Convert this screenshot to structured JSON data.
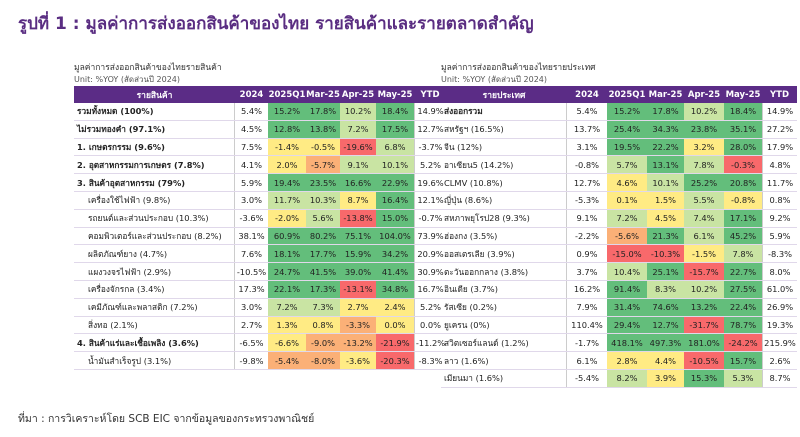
{
  "title": "รูปที่ 1 : มูลค่าการส่งออกสินค้าของไทย รายสินค้าและรายตลาดสำคัญ",
  "source": "ที่มา : การวิเคราะห์โดย SCB EIC จากข้อมูลของกระทรวงพาณิชย์",
  "colors": {
    "header": "#5b2c86",
    "green": "#63be7b",
    "lightgreen": "#c9e4a3",
    "yellow": "#ffeb84",
    "orange": "#fbb077",
    "red": "#f8696b"
  },
  "chart_data": [
    {
      "type": "table",
      "title": "มูลค่าการส่งออกสินค้าของไทยรายสินค้า",
      "subtitle": "Unit: %YOY (สัดส่วนปี 2024)",
      "columns": [
        "รายสินค้า",
        "2024",
        "2025Q1",
        "Mar-25",
        "Apr-25",
        "May-25",
        "YTD"
      ],
      "rows": [
        {
          "label": "รวมทั้งหมด (100%)",
          "style": "bold",
          "values": [
            "5.4%",
            "15.2%",
            "17.8%",
            "10.2%",
            "18.4%",
            "14.9%"
          ],
          "colors": [
            "none",
            "green",
            "green",
            "lightgreen",
            "green",
            "none"
          ]
        },
        {
          "label": "ไม่รวมทองคำ (97.1%)",
          "style": "bold",
          "values": [
            "4.5%",
            "12.8%",
            "13.8%",
            "7.2%",
            "17.5%",
            "12.7%"
          ],
          "colors": [
            "none",
            "green",
            "green",
            "lightgreen",
            "green",
            "none"
          ]
        },
        {
          "label": "1. เกษตรกรรม (9.6%)",
          "style": "bold",
          "values": [
            "7.5%",
            "-1.4%",
            "-0.5%",
            "-19.6%",
            "6.8%",
            "-3.7%"
          ],
          "colors": [
            "none",
            "yellow",
            "yellow",
            "red",
            "lightgreen",
            "none"
          ]
        },
        {
          "label": "2. อุตสาหกรรมการเกษตร (7.8%)",
          "style": "bold",
          "values": [
            "4.1%",
            "2.0%",
            "-5.7%",
            "9.1%",
            "10.1%",
            "5.2%"
          ],
          "colors": [
            "none",
            "yellow",
            "orange",
            "lightgreen",
            "lightgreen",
            "none"
          ]
        },
        {
          "label": "3. สินค้าอุตสาหกรรม (79%)",
          "style": "bold",
          "values": [
            "5.9%",
            "19.4%",
            "23.5%",
            "16.6%",
            "22.9%",
            "19.6%"
          ],
          "colors": [
            "none",
            "green",
            "green",
            "green",
            "green",
            "none"
          ]
        },
        {
          "label": "เครื่องใช้ไฟฟ้า (9.8%)",
          "style": "indent",
          "values": [
            "3.0%",
            "11.7%",
            "10.3%",
            "8.7%",
            "16.4%",
            "12.1%"
          ],
          "colors": [
            "none",
            "lightgreen",
            "lightgreen",
            "yellow",
            "green",
            "none"
          ]
        },
        {
          "label": "รถยนต์และส่วนประกอบ (10.3%)",
          "style": "indent",
          "values": [
            "-3.6%",
            "-2.0%",
            "5.6%",
            "-13.8%",
            "15.0%",
            "-0.7%"
          ],
          "colors": [
            "none",
            "yellow",
            "lightgreen",
            "red",
            "green",
            "none"
          ]
        },
        {
          "label": "คอมพิวเตอร์และส่วนประกอบ (8.2%)",
          "style": "indent",
          "values": [
            "38.1%",
            "60.9%",
            "80.2%",
            "75.1%",
            "104.0%",
            "73.9%"
          ],
          "colors": [
            "none",
            "green",
            "green",
            "green",
            "green",
            "none"
          ]
        },
        {
          "label": "ผลิตภัณฑ์ยาง (4.7%)",
          "style": "indent",
          "values": [
            "7.6%",
            "18.1%",
            "17.7%",
            "15.9%",
            "34.2%",
            "20.9%"
          ],
          "colors": [
            "none",
            "green",
            "green",
            "green",
            "green",
            "none"
          ]
        },
        {
          "label": "แผงวงจรไฟฟ้า (2.9%)",
          "style": "indent",
          "values": [
            "-10.5%",
            "24.7%",
            "41.5%",
            "39.0%",
            "41.4%",
            "30.9%"
          ],
          "colors": [
            "none",
            "green",
            "green",
            "green",
            "green",
            "none"
          ]
        },
        {
          "label": "เครื่องจักรกล (3.4%)",
          "style": "indent",
          "values": [
            "17.3%",
            "22.1%",
            "17.3%",
            "-13.1%",
            "34.8%",
            "16.7%"
          ],
          "colors": [
            "none",
            "green",
            "green",
            "red",
            "green",
            "none"
          ]
        },
        {
          "label": "เคมีภัณฑ์และพลาสติก (7.2%)",
          "style": "indent",
          "values": [
            "3.0%",
            "7.2%",
            "7.3%",
            "2.7%",
            "2.4%",
            "5.2%"
          ],
          "colors": [
            "none",
            "lightgreen",
            "lightgreen",
            "yellow",
            "yellow",
            "none"
          ]
        },
        {
          "label": "สิ่งทอ (2.1%)",
          "style": "indent",
          "values": [
            "2.7%",
            "1.3%",
            "0.8%",
            "-3.3%",
            "0.0%",
            "0.0%"
          ],
          "colors": [
            "none",
            "yellow",
            "yellow",
            "orange",
            "yellow",
            "none"
          ]
        },
        {
          "label": "4. สินค้าแร่และเชื้อเพลิง (3.6%)",
          "style": "bold",
          "values": [
            "-6.5%",
            "-6.6%",
            "-9.0%",
            "-13.2%",
            "-21.9%",
            "-11.2%"
          ],
          "colors": [
            "none",
            "yellow",
            "orange",
            "orange",
            "red",
            "none"
          ]
        },
        {
          "label": "น้ำมันสำเร็จรูป (3.1%)",
          "style": "indent",
          "values": [
            "-9.8%",
            "-5.4%",
            "-8.0%",
            "-3.6%",
            "-20.3%",
            "-8.3%"
          ],
          "colors": [
            "none",
            "orange",
            "orange",
            "yellow",
            "red",
            "none"
          ]
        }
      ]
    },
    {
      "type": "table",
      "title": "มูลค่าการส่งออกสินค้าของไทยรายประเทศ",
      "subtitle": "Unit: %YOY (สัดส่วนปี 2024)",
      "columns": [
        "รายประเทศ",
        "2024",
        "2025Q1",
        "Mar-25",
        "Apr-25",
        "May-25",
        "YTD"
      ],
      "rows": [
        {
          "label": "ส่งออกรวม",
          "style": "bold",
          "values": [
            "5.4%",
            "15.2%",
            "17.8%",
            "10.2%",
            "18.4%",
            "14.9%"
          ],
          "colors": [
            "none",
            "green",
            "green",
            "lightgreen",
            "green",
            "none"
          ]
        },
        {
          "label": "สหรัฐฯ (16.5%)",
          "style": "plain",
          "values": [
            "13.7%",
            "25.4%",
            "34.3%",
            "23.8%",
            "35.1%",
            "27.2%"
          ],
          "colors": [
            "none",
            "green",
            "green",
            "green",
            "green",
            "none"
          ]
        },
        {
          "label": "จีน (12%)",
          "style": "plain",
          "values": [
            "3.1%",
            "19.5%",
            "22.2%",
            "3.2%",
            "28.0%",
            "17.9%"
          ],
          "colors": [
            "none",
            "green",
            "green",
            "yellow",
            "green",
            "none"
          ]
        },
        {
          "label": "อาเซียน5 (14.2%)",
          "style": "plain",
          "values": [
            "-0.8%",
            "5.7%",
            "13.1%",
            "7.8%",
            "-0.3%",
            "4.8%"
          ],
          "colors": [
            "none",
            "lightgreen",
            "green",
            "lightgreen",
            "red",
            "none"
          ]
        },
        {
          "label": "CLMV (10.8%)",
          "style": "plain",
          "values": [
            "12.7%",
            "4.6%",
            "10.1%",
            "25.2%",
            "20.8%",
            "11.7%"
          ],
          "colors": [
            "none",
            "yellow",
            "lightgreen",
            "green",
            "green",
            "none"
          ]
        },
        {
          "label": "ญี่ปุ่น (8.6%)",
          "style": "plain",
          "values": [
            "-5.3%",
            "0.1%",
            "1.5%",
            "5.5%",
            "-0.8%",
            "0.8%"
          ],
          "colors": [
            "none",
            "yellow",
            "yellow",
            "lightgreen",
            "yellow",
            "none"
          ]
        },
        {
          "label": "สหภาพยุโรป28 (9.3%)",
          "style": "plain",
          "values": [
            "9.1%",
            "7.2%",
            "4.5%",
            "7.4%",
            "17.1%",
            "9.2%"
          ],
          "colors": [
            "none",
            "lightgreen",
            "yellow",
            "lightgreen",
            "green",
            "none"
          ]
        },
        {
          "label": "ฮ่องกง (3.5%)",
          "style": "plain",
          "values": [
            "-2.2%",
            "-5.6%",
            "21.3%",
            "6.1%",
            "45.2%",
            "5.9%"
          ],
          "colors": [
            "none",
            "orange",
            "green",
            "lightgreen",
            "green",
            "none"
          ]
        },
        {
          "label": "ออสเตรเลีย (3.9%)",
          "style": "plain",
          "values": [
            "0.9%",
            "-15.0%",
            "-10.3%",
            "-1.5%",
            "7.8%",
            "-8.3%"
          ],
          "colors": [
            "none",
            "red",
            "red",
            "yellow",
            "lightgreen",
            "none"
          ]
        },
        {
          "label": "ตะวันออกกลาง (3.8%)",
          "style": "plain",
          "values": [
            "3.7%",
            "10.4%",
            "25.1%",
            "-15.7%",
            "22.7%",
            "8.0%"
          ],
          "colors": [
            "none",
            "lightgreen",
            "green",
            "red",
            "green",
            "none"
          ]
        },
        {
          "label": "อินเดีย (3.7%)",
          "style": "plain",
          "values": [
            "16.2%",
            "91.4%",
            "8.3%",
            "10.2%",
            "27.5%",
            "61.0%"
          ],
          "colors": [
            "none",
            "green",
            "lightgreen",
            "lightgreen",
            "green",
            "none"
          ]
        },
        {
          "label": "รัสเซีย (0.2%)",
          "style": "plain",
          "values": [
            "7.9%",
            "31.4%",
            "74.6%",
            "13.2%",
            "22.4%",
            "26.9%"
          ],
          "colors": [
            "none",
            "green",
            "green",
            "green",
            "green",
            "none"
          ]
        },
        {
          "label": "ยูเครน (0%)",
          "style": "plain",
          "values": [
            "110.4%",
            "29.4%",
            "12.7%",
            "-31.7%",
            "78.7%",
            "19.3%"
          ],
          "colors": [
            "none",
            "green",
            "green",
            "red",
            "green",
            "none"
          ]
        },
        {
          "label": "สวิตเซอร์แลนด์ (1.2%)",
          "style": "plain",
          "values": [
            "-1.7%",
            "418.1%",
            "497.3%",
            "181.0%",
            "-24.2%",
            "215.9%"
          ],
          "colors": [
            "none",
            "green",
            "green",
            "green",
            "red",
            "none"
          ]
        },
        {
          "label": "ลาว (1.6%)",
          "style": "plain",
          "values": [
            "6.1%",
            "2.8%",
            "4.4%",
            "-10.5%",
            "15.7%",
            "2.6%"
          ],
          "colors": [
            "none",
            "yellow",
            "yellow",
            "red",
            "green",
            "none"
          ]
        },
        {
          "label": "เมียนมา (1.6%)",
          "style": "plain",
          "values": [
            "-5.4%",
            "8.2%",
            "3.9%",
            "15.3%",
            "5.3%",
            "8.7%"
          ],
          "colors": [
            "none",
            "lightgreen",
            "yellow",
            "green",
            "lightgreen",
            "none"
          ]
        }
      ]
    }
  ]
}
